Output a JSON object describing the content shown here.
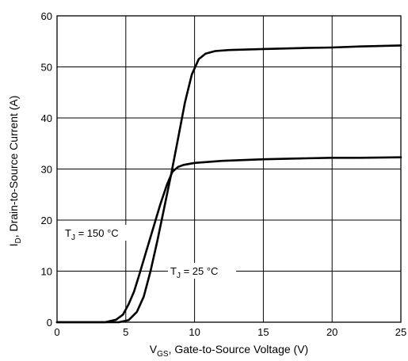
{
  "chart_data": {
    "type": "line",
    "title": "",
    "xlabel": {
      "main": "V",
      "sub": "GS",
      "rest": ", Gate-to-Source Voltage (V)"
    },
    "ylabel": {
      "main": "I",
      "sub": "D",
      "rest": ", Drain-to-Source Current (A)"
    },
    "xlim": [
      0,
      25
    ],
    "ylim": [
      0,
      60
    ],
    "xticks": [
      0,
      5,
      10,
      15,
      20,
      25
    ],
    "yticks": [
      0,
      10,
      20,
      30,
      40,
      50,
      60
    ],
    "grid": true,
    "series": [
      {
        "name": "T_J = 150 °C",
        "x": [
          0,
          2,
          3.5,
          4.3,
          4.8,
          5.2,
          5.6,
          6.0,
          6.5,
          7.0,
          7.5,
          8.0,
          8.4,
          8.8,
          9.2,
          10,
          12,
          15,
          18,
          20,
          22,
          25
        ],
        "y": [
          0,
          0,
          0,
          0.5,
          1.5,
          3.5,
          6,
          9.5,
          14,
          18.5,
          23,
          27,
          29.5,
          30.4,
          30.8,
          31.2,
          31.6,
          31.9,
          32.1,
          32.2,
          32.2,
          32.3
        ]
      },
      {
        "name": "T_J = 25 °C",
        "x": [
          0,
          2,
          3.5,
          4.5,
          5.2,
          5.8,
          6.3,
          6.8,
          7.3,
          7.8,
          8.3,
          8.8,
          9.3,
          9.8,
          10.3,
          10.8,
          11.5,
          12.5,
          15,
          18,
          20,
          22,
          25
        ],
        "y": [
          0,
          0,
          0,
          0,
          0.4,
          2,
          5,
          10,
          16,
          22.5,
          29,
          36,
          43,
          48.5,
          51.5,
          52.6,
          53.1,
          53.3,
          53.5,
          53.7,
          53.8,
          54.0,
          54.2
        ]
      }
    ],
    "annotations": [
      {
        "main": "T",
        "sub": "J",
        "rest": " = 150 °C"
      },
      {
        "main": "T",
        "sub": "J",
        "rest": " = 25 °C"
      }
    ]
  }
}
